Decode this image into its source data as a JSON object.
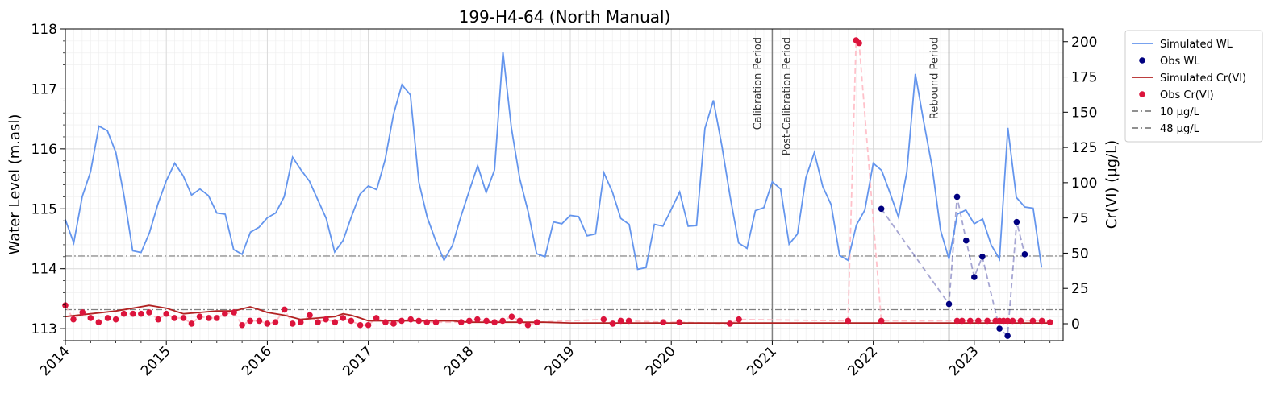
{
  "chart_data": {
    "type": "line",
    "title": "199-H4-64 (North Manual)",
    "ylabel": "Water Level (m.asl)",
    "y2label": "Cr(VI) (µg/L)",
    "xlim": [
      2014.0,
      2023.88
    ],
    "ylim": [
      112.8,
      118.0
    ],
    "y2lim": [
      -12,
      209
    ],
    "x_ticks": [
      2014,
      2015,
      2016,
      2017,
      2018,
      2019,
      2020,
      2021,
      2022,
      2023
    ],
    "x_tick_labels": [
      "2014",
      "2015",
      "2016",
      "2017",
      "2018",
      "2019",
      "2020",
      "2021",
      "2022",
      "2023"
    ],
    "y_ticks": [
      113,
      114,
      115,
      116,
      117,
      118
    ],
    "y_tick_labels": [
      "113",
      "114",
      "115",
      "116",
      "117",
      "118"
    ],
    "y2_ticks": [
      0,
      25,
      50,
      75,
      100,
      125,
      150,
      175,
      200
    ],
    "y2_tick_labels": [
      "0",
      "25",
      "50",
      "75",
      "100",
      "125",
      "150",
      "175",
      "200"
    ],
    "grid": true,
    "legend_position": "outside-top-right",
    "colors": {
      "sim_wl": "#6495ed",
      "obs_wl": "#000080",
      "sim_cr": "#b22222",
      "obs_cr": "#dc143c",
      "threshold": "#808080",
      "obs_cr_dash": "#ffb6c1",
      "obs_wl_dash": "#000080",
      "period_line": "#808080"
    },
    "period_markers": [
      {
        "x": 2021.0,
        "label_before": "Calibration Period",
        "label_after": "Post-Calibration Period"
      },
      {
        "x": 2022.75,
        "label_before": "Rebound Period"
      }
    ],
    "thresholds": [
      {
        "name": "10 µg/L",
        "value": 10
      },
      {
        "name": "48 µg/L",
        "value": 48
      }
    ],
    "series": [
      {
        "name": "Simulated WL",
        "axis": "left",
        "x": [
          2014.0,
          2014.083,
          2014.167,
          2014.25,
          2014.333,
          2014.417,
          2014.5,
          2014.583,
          2014.667,
          2014.75,
          2014.833,
          2014.917,
          2015.0,
          2015.083,
          2015.167,
          2015.25,
          2015.333,
          2015.417,
          2015.5,
          2015.583,
          2015.667,
          2015.75,
          2015.833,
          2015.917,
          2016.0,
          2016.083,
          2016.167,
          2016.25,
          2016.333,
          2016.417,
          2016.5,
          2016.583,
          2016.667,
          2016.75,
          2016.833,
          2016.917,
          2017.0,
          2017.083,
          2017.167,
          2017.25,
          2017.333,
          2017.417,
          2017.5,
          2017.583,
          2017.667,
          2017.75,
          2017.833,
          2017.917,
          2018.0,
          2018.083,
          2018.167,
          2018.25,
          2018.333,
          2018.417,
          2018.5,
          2018.583,
          2018.667,
          2018.75,
          2018.833,
          2018.917,
          2019.0,
          2019.083,
          2019.167,
          2019.25,
          2019.333,
          2019.417,
          2019.5,
          2019.583,
          2019.667,
          2019.75,
          2019.833,
          2019.917,
          2020.0,
          2020.083,
          2020.167,
          2020.25,
          2020.333,
          2020.417,
          2020.5,
          2020.583,
          2020.667,
          2020.75,
          2020.833,
          2020.917,
          2021.0,
          2021.083,
          2021.167,
          2021.25,
          2021.333,
          2021.417,
          2021.5,
          2021.583,
          2021.667,
          2021.75,
          2021.833,
          2021.917,
          2022.0,
          2022.083,
          2022.167,
          2022.25,
          2022.333,
          2022.417,
          2022.5,
          2022.583,
          2022.667,
          2022.75,
          2022.833,
          2022.917,
          2023.0,
          2023.083,
          2023.167,
          2023.25,
          2023.333,
          2023.417,
          2023.5,
          2023.583,
          2023.667
        ],
        "y": [
          114.82,
          114.43,
          115.2,
          115.62,
          116.38,
          116.3,
          115.94,
          115.2,
          114.3,
          114.27,
          114.6,
          115.08,
          115.47,
          115.76,
          115.55,
          115.23,
          115.33,
          115.22,
          114.93,
          114.91,
          114.32,
          114.24,
          114.61,
          114.69,
          114.85,
          114.93,
          115.2,
          115.86,
          115.65,
          115.46,
          115.15,
          114.84,
          114.28,
          114.47,
          114.87,
          115.24,
          115.38,
          115.32,
          115.82,
          116.58,
          117.07,
          116.9,
          115.45,
          114.86,
          114.47,
          114.14,
          114.39,
          114.87,
          115.3,
          115.72,
          115.27,
          115.65,
          117.62,
          116.35,
          115.5,
          114.95,
          114.25,
          114.2,
          114.78,
          114.75,
          114.89,
          114.87,
          114.55,
          114.58,
          115.6,
          115.28,
          114.84,
          114.74,
          113.99,
          114.02,
          114.74,
          114.71,
          114.99,
          115.28,
          114.71,
          114.72,
          116.34,
          116.81,
          116.06,
          115.2,
          114.43,
          114.34,
          114.97,
          115.02,
          115.45,
          115.33,
          114.41,
          114.58,
          115.52,
          115.94,
          115.37,
          115.07,
          114.22,
          114.14,
          114.73,
          114.98,
          115.76,
          115.64,
          115.26,
          114.86,
          115.62,
          117.25,
          116.45,
          115.7,
          114.64,
          114.16,
          114.91,
          114.98,
          114.75,
          114.83,
          114.4,
          114.16,
          116.35,
          115.19,
          115.03,
          115.01,
          114.02
        ]
      },
      {
        "name": "Obs WL",
        "axis": "left",
        "x": [
          2022.08,
          2022.75,
          2022.83,
          2022.92,
          2023.0,
          2023.08,
          2023.25,
          2023.33,
          2023.42,
          2023.5
        ],
        "y": [
          115.0,
          113.41,
          115.2,
          114.47,
          113.86,
          114.2,
          113.0,
          112.88,
          114.78,
          114.24
        ]
      },
      {
        "name": "Simulated Cr(VI)",
        "axis": "right",
        "x": [
          2014.0,
          2014.25,
          2014.5,
          2014.67,
          2014.83,
          2015.0,
          2015.17,
          2015.33,
          2015.5,
          2015.67,
          2015.83,
          2015.92,
          2016.0,
          2016.17,
          2016.33,
          2016.5,
          2016.67,
          2016.75,
          2016.83,
          2016.92,
          2017.0,
          2017.17,
          2017.33,
          2017.5,
          2017.67,
          2017.83,
          2018.0,
          2018.25,
          2018.5,
          2018.75,
          2019.0,
          2019.5,
          2020.0,
          2020.5,
          2021.0,
          2021.5,
          2022.0,
          2022.5,
          2023.0,
          2023.5,
          2023.75
        ],
        "y": [
          5,
          7,
          9,
          11,
          13,
          11,
          7,
          8,
          9,
          9,
          12,
          10,
          8,
          6,
          3,
          4,
          5,
          7,
          6,
          4,
          2,
          2,
          2,
          2,
          2,
          2,
          1,
          1,
          1,
          1,
          0.5,
          0.5,
          0.5,
          0.5,
          0.5,
          0.5,
          0.5,
          0.5,
          0.5,
          0.5,
          0.5
        ]
      },
      {
        "name": "Obs Cr(VI)",
        "axis": "right",
        "x": [
          2014.0,
          2014.08,
          2014.17,
          2014.25,
          2014.33,
          2014.42,
          2014.5,
          2014.58,
          2014.67,
          2014.75,
          2014.83,
          2014.92,
          2015.0,
          2015.08,
          2015.17,
          2015.25,
          2015.33,
          2015.42,
          2015.5,
          2015.58,
          2015.67,
          2015.75,
          2015.83,
          2015.92,
          2016.0,
          2016.08,
          2016.17,
          2016.25,
          2016.33,
          2016.42,
          2016.5,
          2016.58,
          2016.67,
          2016.75,
          2016.83,
          2016.92,
          2017.0,
          2017.08,
          2017.17,
          2017.25,
          2017.33,
          2017.42,
          2017.5,
          2017.58,
          2017.67,
          2017.92,
          2018.0,
          2018.08,
          2018.17,
          2018.25,
          2018.33,
          2018.42,
          2018.5,
          2018.58,
          2018.67,
          2019.33,
          2019.42,
          2019.5,
          2019.58,
          2019.92,
          2020.08,
          2020.58,
          2020.67,
          2021.75,
          2021.83,
          2021.86,
          2022.08,
          2022.83,
          2022.88,
          2022.96,
          2023.04,
          2023.13,
          2023.21,
          2023.25,
          2023.29,
          2023.33,
          2023.38,
          2023.46,
          2023.58,
          2023.67,
          2023.75
        ],
        "y": [
          13,
          3,
          8,
          4,
          1,
          4,
          3,
          7,
          7,
          7,
          8,
          3,
          7,
          4,
          4,
          0,
          5,
          4,
          4,
          7,
          8,
          -1,
          2,
          2,
          0,
          1,
          10,
          0,
          1,
          6,
          1,
          3,
          1,
          4,
          2,
          -1,
          -1,
          4,
          1,
          0,
          2,
          3,
          2,
          1,
          1,
          1,
          2,
          3,
          2,
          1,
          2,
          5,
          2,
          -1,
          1,
          3,
          0,
          2,
          2,
          1,
          1,
          0,
          3,
          2,
          201,
          199,
          2,
          2,
          2,
          2,
          2,
          2,
          2,
          2,
          2,
          2,
          2,
          2,
          2,
          2,
          1
        ]
      },
      {
        "name": "10 µg/L",
        "axis": "right",
        "y": [
          10
        ]
      },
      {
        "name": "48 µg/L",
        "axis": "right",
        "y": [
          48
        ]
      }
    ],
    "legend": [
      "Simulated WL",
      "Obs WL",
      "Simulated Cr(VI)",
      "Obs Cr(VI)",
      "10 µg/L",
      "48 µg/L"
    ]
  }
}
